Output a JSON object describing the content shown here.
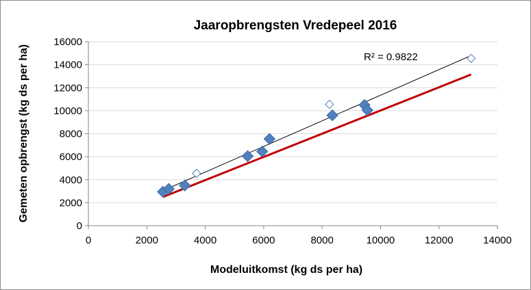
{
  "chart_data": {
    "type": "scatter",
    "title": "Jaaropbrengsten Vredepeel 2016",
    "xlabel": "Modeluitkomst  (kg ds per ha)",
    "ylabel": "Gemeten  opbrengst (kg ds per ha)",
    "xlim": [
      0,
      14000
    ],
    "ylim": [
      0,
      16000
    ],
    "x_ticks": [
      "0",
      "2000",
      "4000",
      "6000",
      "8000",
      "10000",
      "12000",
      "14000"
    ],
    "y_ticks": [
      "0",
      "2000",
      "4000",
      "6000",
      "8000",
      "10000",
      "12000",
      "14000",
      "16000"
    ],
    "grid": "horizontal",
    "annotation": "R² = 0.9822",
    "series": [
      {
        "marker": "filled-diamond",
        "color": "#4f81bd",
        "points": [
          [
            2550,
            2950
          ],
          [
            2750,
            3200
          ],
          [
            3300,
            3500
          ],
          [
            5450,
            6050
          ],
          [
            5950,
            6450
          ],
          [
            6200,
            7550
          ],
          [
            8350,
            9600
          ],
          [
            9450,
            10500
          ],
          [
            9550,
            10050
          ]
        ]
      },
      {
        "marker": "open-diamond",
        "color": "#4f81bd",
        "points": [
          [
            3700,
            4550
          ],
          [
            8250,
            10550
          ],
          [
            13100,
            14550
          ]
        ]
      }
    ],
    "lines": [
      {
        "kind": "trendline",
        "color": "#000000",
        "from": [
          2550,
          3050
        ],
        "to": [
          13100,
          14800
        ]
      },
      {
        "kind": "reference",
        "color": "#c00000",
        "from": [
          2550,
          2500
        ],
        "to": [
          13100,
          13150
        ]
      }
    ]
  }
}
